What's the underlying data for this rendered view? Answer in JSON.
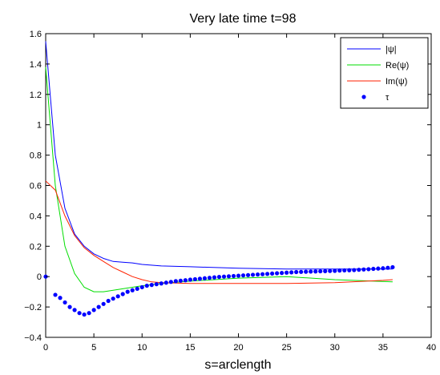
{
  "chart_data": {
    "type": "line",
    "title": "Very late time t=98",
    "xlabel": "s=arclength",
    "ylabel": "",
    "xlim": [
      0,
      40
    ],
    "ylim": [
      -0.4,
      1.6
    ],
    "xticks": [
      0,
      5,
      10,
      15,
      20,
      25,
      30,
      35,
      40
    ],
    "yticks": [
      -0.4,
      -0.2,
      0,
      0.2,
      0.4,
      0.6,
      0.8,
      1,
      1.2,
      1.4,
      1.6
    ],
    "xtick_labels": [
      "0",
      "5",
      "10",
      "15",
      "20",
      "25",
      "30",
      "35",
      "40"
    ],
    "ytick_labels": [
      "−0.4",
      "−0.2",
      "0",
      "0.2",
      "0.4",
      "0.6",
      "0.8",
      "1",
      "1.2",
      "1.4",
      "1.6"
    ],
    "grid": false,
    "legend_position": "top-right",
    "series": [
      {
        "name": "|ψ|",
        "style": "line",
        "color": "#0000ff",
        "x": [
          0,
          1,
          2,
          3,
          4,
          5,
          6,
          7,
          8,
          9,
          10,
          12,
          15,
          20,
          25,
          30,
          36
        ],
        "y": [
          1.55,
          0.8,
          0.45,
          0.28,
          0.2,
          0.15,
          0.12,
          0.1,
          0.095,
          0.09,
          0.08,
          0.07,
          0.065,
          0.055,
          0.05,
          0.05,
          0.05
        ]
      },
      {
        "name": "Re(ψ)",
        "style": "line",
        "color": "#00dd00",
        "x": [
          0,
          1,
          2,
          3,
          4,
          5,
          6,
          7,
          8,
          10,
          12,
          15,
          20,
          25,
          30,
          36
        ],
        "y": [
          1.38,
          0.6,
          0.2,
          0.02,
          -0.07,
          -0.1,
          -0.1,
          -0.09,
          -0.08,
          -0.06,
          -0.045,
          -0.03,
          -0.01,
          0.0,
          -0.02,
          -0.035
        ]
      },
      {
        "name": "Im(ψ)",
        "style": "line",
        "color": "#ff2200",
        "x": [
          0,
          1,
          2,
          3,
          4,
          5,
          6,
          7,
          8,
          9,
          10,
          11,
          12,
          15,
          20,
          25,
          30,
          35,
          36
        ],
        "y": [
          0.63,
          0.57,
          0.4,
          0.27,
          0.19,
          0.14,
          0.1,
          0.06,
          0.03,
          0.0,
          -0.02,
          -0.035,
          -0.04,
          -0.045,
          -0.045,
          -0.045,
          -0.04,
          -0.025,
          -0.02
        ]
      },
      {
        "name": "τ",
        "style": "markers",
        "color": "#0000ff",
        "x": [
          0,
          1,
          1.5,
          2,
          2.5,
          3,
          3.5,
          4,
          4.5,
          5,
          5.5,
          6,
          6.5,
          7,
          7.5,
          8,
          8.5,
          9,
          9.5,
          10,
          10.5,
          11,
          11.5,
          12,
          12.5,
          13,
          13.5,
          14,
          14.5,
          15,
          15.5,
          16,
          16.5,
          17,
          17.5,
          18,
          18.5,
          19,
          19.5,
          20,
          20.5,
          21,
          21.5,
          22,
          22.5,
          23,
          23.5,
          24,
          24.5,
          25,
          25.5,
          26,
          26.5,
          27,
          27.5,
          28,
          28.5,
          29,
          29.5,
          30,
          30.5,
          31,
          31.5,
          32,
          32.5,
          33,
          33.5,
          34,
          34.5,
          35,
          35.5,
          36
        ],
        "y": [
          0,
          -0.12,
          -0.14,
          -0.17,
          -0.2,
          -0.22,
          -0.24,
          -0.25,
          -0.24,
          -0.22,
          -0.2,
          -0.18,
          -0.16,
          -0.145,
          -0.13,
          -0.115,
          -0.1,
          -0.09,
          -0.08,
          -0.07,
          -0.06,
          -0.055,
          -0.05,
          -0.045,
          -0.04,
          -0.035,
          -0.03,
          -0.027,
          -0.024,
          -0.02,
          -0.017,
          -0.014,
          -0.011,
          -0.008,
          -0.005,
          -0.002,
          0.0,
          0.002,
          0.004,
          0.006,
          0.008,
          0.01,
          0.012,
          0.014,
          0.016,
          0.018,
          0.02,
          0.022,
          0.024,
          0.026,
          0.028,
          0.03,
          0.031,
          0.032,
          0.033,
          0.034,
          0.035,
          0.036,
          0.037,
          0.038,
          0.04,
          0.041,
          0.042,
          0.043,
          0.045,
          0.047,
          0.049,
          0.051,
          0.053,
          0.055,
          0.058,
          0.062
        ]
      }
    ]
  }
}
